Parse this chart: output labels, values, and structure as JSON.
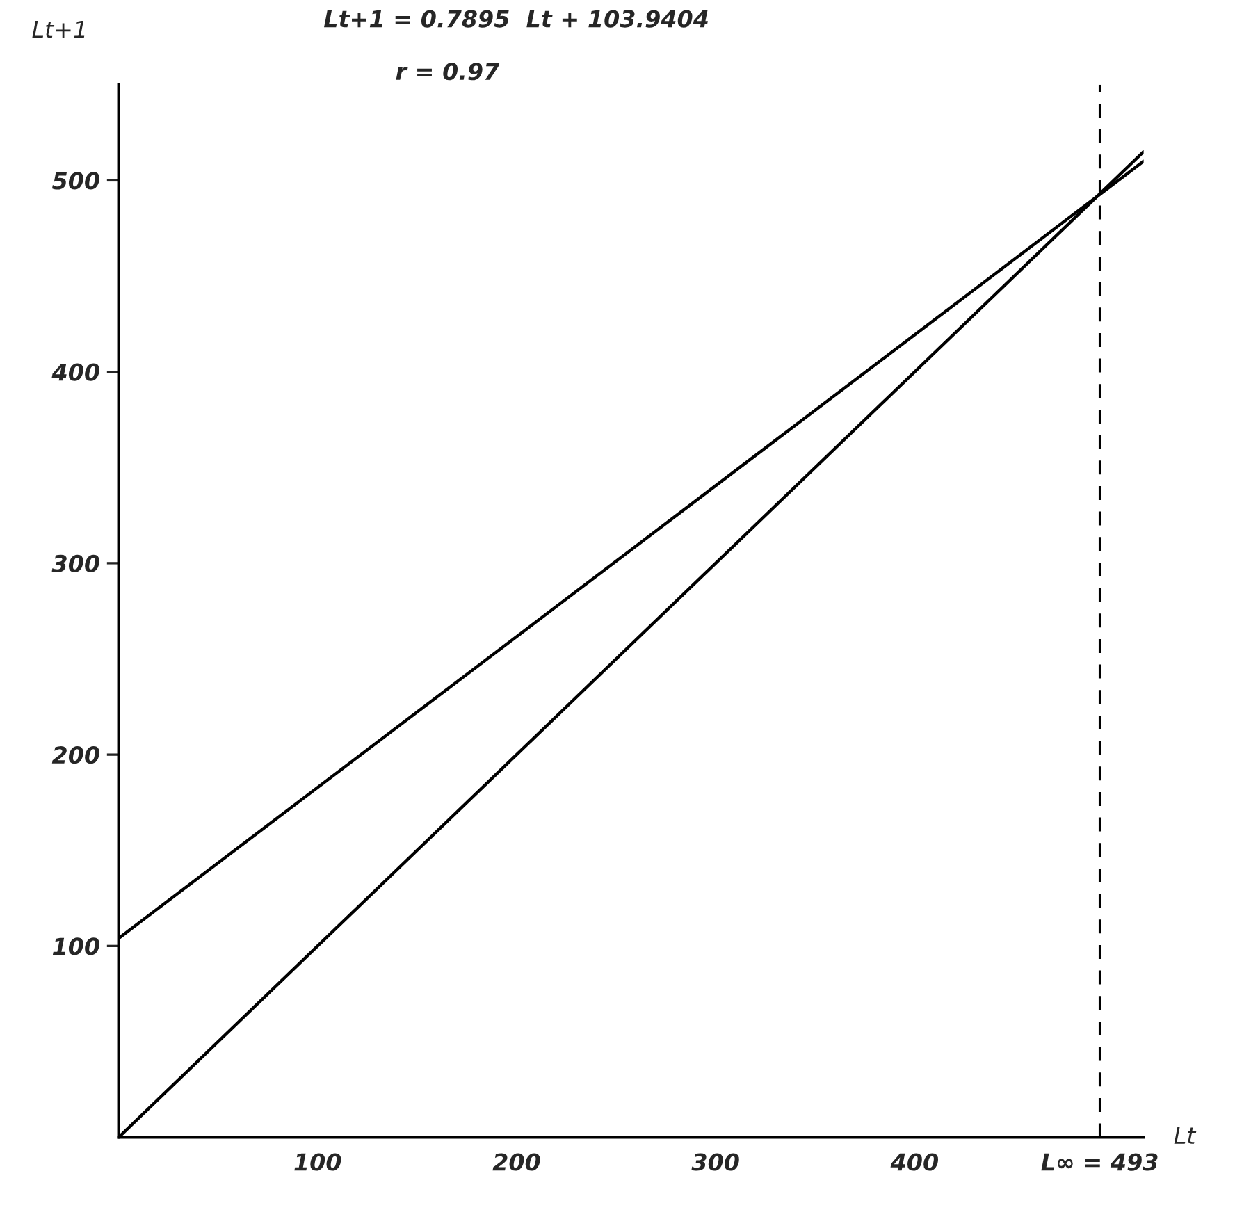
{
  "chart_data": {
    "type": "line",
    "xlabel": "Lt",
    "ylabel": "Lt+1",
    "annotations": [
      "Lt+1 = 0.7895  Lt + 103.9404",
      "r = 0.97"
    ],
    "x": [
      0,
      515
    ],
    "series": [
      {
        "color": "#000000",
        "values": [
          0,
          515
        ]
      },
      {
        "color": "#000000",
        "values": [
          104,
          510
        ]
      }
    ],
    "xlim": [
      0,
      515
    ],
    "ylim": [
      0,
      550
    ],
    "xticks": [
      100,
      200,
      300,
      400,
      {
        "value": 493,
        "label": "L∞ = 493"
      }
    ],
    "yticks": [
      100,
      200,
      300,
      400,
      500
    ],
    "ref_lines": [
      {
        "axis": "x",
        "value": 493,
        "line_style": "dashed",
        "color": "#000000"
      }
    ],
    "grid": false,
    "legend": false,
    "marker": "none",
    "line_style": "solid"
  }
}
